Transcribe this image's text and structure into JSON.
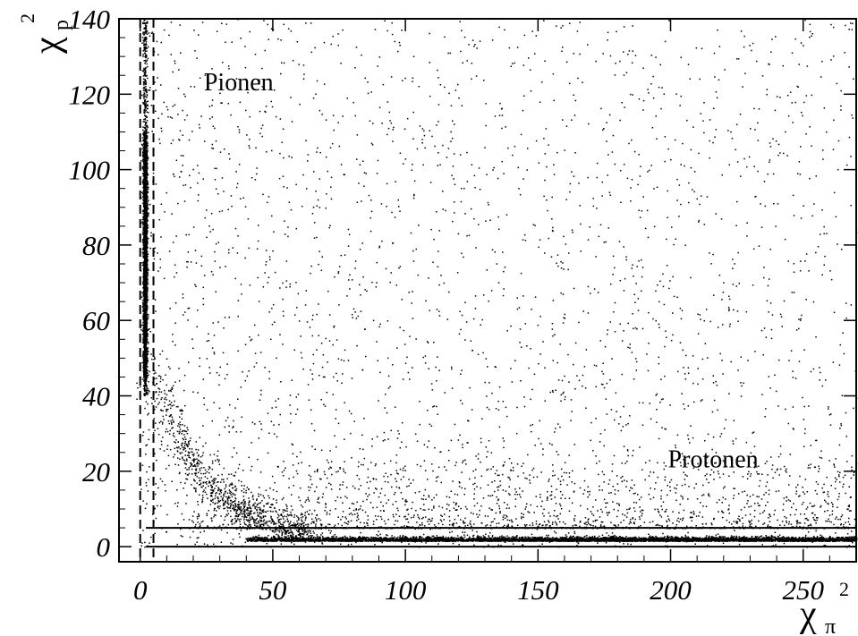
{
  "chart_data": {
    "type": "scatter",
    "title": "",
    "xlabel": {
      "symbol": "χ",
      "subscript": "π",
      "superscript": "2"
    },
    "ylabel": {
      "symbol": "χ",
      "subscript": "p",
      "superscript": "2"
    },
    "xlim": [
      -8,
      270
    ],
    "ylim": [
      -4,
      140
    ],
    "x_ticks": [
      0,
      50,
      100,
      150,
      200,
      250
    ],
    "x_tick_labels": [
      "0",
      "50",
      "100",
      "150",
      "200",
      "250"
    ],
    "y_ticks": [
      0,
      20,
      40,
      60,
      80,
      100,
      120,
      140
    ],
    "y_tick_labels": [
      "0",
      "20",
      "40",
      "60",
      "80",
      "100",
      "120",
      "140"
    ],
    "grid": false,
    "legend": "none",
    "marker_color": "#000000",
    "annotations": [
      {
        "text": "Pionen",
        "x": 24,
        "y": 121
      },
      {
        "text": "Protonen",
        "x": 199,
        "y": 21
      }
    ],
    "cut_lines": [
      {
        "orientation": "vertical",
        "value": 0,
        "style": "dashed"
      },
      {
        "orientation": "vertical",
        "value": 5,
        "style": "dashed"
      },
      {
        "orientation": "horizontal",
        "value": 0,
        "style": "solid"
      },
      {
        "orientation": "horizontal",
        "value": 5,
        "style": "solid"
      }
    ],
    "point_clouds": [
      {
        "name": "",
        "description": "pion band",
        "x_range": [
          0,
          4
        ],
        "y_range": [
          40,
          140
        ],
        "approx_points": 3500
      },
      {
        "name": "",
        "description": "proton band",
        "x_range": [
          40,
          270
        ],
        "y_range": [
          0,
          5
        ],
        "approx_points": 6000
      },
      {
        "name": "",
        "description": "diffuse background",
        "x_range": [
          0,
          270
        ],
        "y_range": [
          0,
          140
        ],
        "approx_points": 2800
      }
    ]
  }
}
